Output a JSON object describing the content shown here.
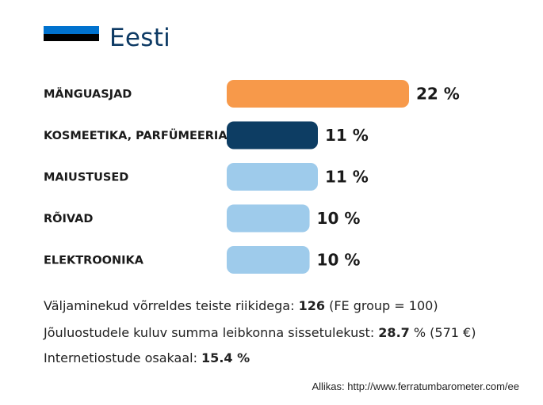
{
  "header": {
    "country": "Eesti",
    "flag_colors": [
      "#0072ce",
      "#000000",
      "#ffffff"
    ]
  },
  "chart_data": {
    "type": "bar",
    "orientation": "horizontal",
    "categories": [
      "MÄNGUASJAD",
      "KOSMEETIKA, PARFÜMEERIA",
      "MAIUSTUSED",
      "RÕIVAD",
      "ELEKTROONIKA"
    ],
    "values": [
      22,
      11,
      11,
      10,
      10
    ],
    "value_labels": [
      "22 %",
      "11 %",
      "11 %",
      "10 %",
      "10 %"
    ],
    "colors": [
      "#f7994a",
      "#0d3d63",
      "#9ecbeb",
      "#9ecbeb",
      "#9ecbeb"
    ],
    "title": "",
    "xlabel": "",
    "ylabel": ""
  },
  "stats": [
    {
      "label": "Väljaminekud võrreldes teiste riikidega: ",
      "value": "126",
      "suffix": " (FE group = 100)"
    },
    {
      "label": "Jõuluostudele kuluv summa leibkonna sissetulekust: ",
      "value": "28.7",
      "suffix": " % (571 €)"
    },
    {
      "label": "Internetiostude osakaal: ",
      "value": "15.4 %",
      "suffix": ""
    }
  ],
  "source": "Allikas: http://www.ferratumbarometer.com/ee"
}
